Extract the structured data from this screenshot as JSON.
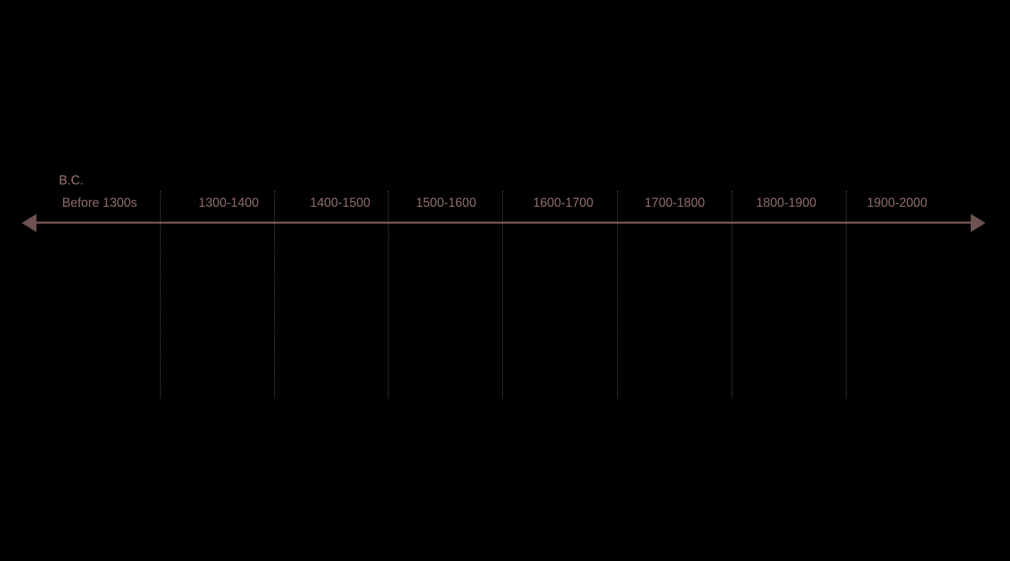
{
  "colors": {
    "background": "#000000",
    "axis": "#6e5252",
    "label": "#8f6a6a",
    "era_label": "#9c7272",
    "divider": "#6e5656"
  },
  "timeline": {
    "era_label": "B.C.",
    "periods": [
      "Before 1300s",
      "1300-1400",
      "1400-1500",
      "1500-1600",
      "1600-1700",
      "1700-1800",
      "1800-1900",
      "1900-2000"
    ]
  }
}
